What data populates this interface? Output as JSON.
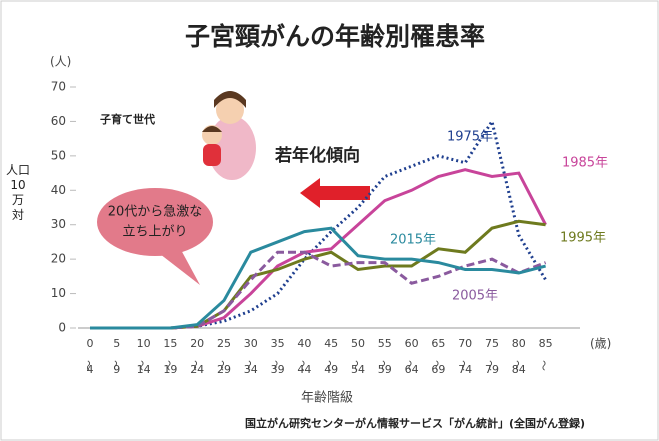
{
  "chart_data": {
    "type": "line",
    "title": "子宮頸がんの年齢別罹患率",
    "y_unit": "(人)",
    "y_label": "人口10万対",
    "x_label": "年齢階級",
    "x_unit": "(歳)",
    "source": "国立がん研究センターがん情報サービス「がん統計」(全国がん登録)",
    "annotations": {
      "generation": "子育て世代",
      "trend": "若年化傾向",
      "bubble": [
        "20代から急激な",
        "立ち上がり"
      ]
    },
    "categories": [
      "0〜4",
      "5〜9",
      "10〜14",
      "15〜19",
      "20〜24",
      "25〜29",
      "30〜34",
      "35〜39",
      "40〜44",
      "45〜49",
      "50〜54",
      "55〜59",
      "60〜64",
      "65〜69",
      "70〜74",
      "75〜79",
      "80〜84",
      "85〜"
    ],
    "ylim": [
      0,
      70
    ],
    "yticks": [
      0,
      10,
      20,
      30,
      40,
      50,
      60,
      70
    ],
    "grid": false,
    "series": [
      {
        "name": "1975年",
        "color": "#1f3f8f",
        "style": "dotted",
        "values": [
          0,
          0,
          0,
          0,
          0.5,
          2,
          5,
          10,
          20,
          28,
          35,
          44,
          47,
          50,
          48,
          60,
          27,
          14
        ]
      },
      {
        "name": "1985年",
        "color": "#c8449a",
        "style": "solid",
        "values": [
          0,
          0,
          0,
          0,
          0.5,
          3,
          10,
          18,
          22,
          23,
          30,
          37,
          40,
          44,
          46,
          44,
          45,
          30
        ]
      },
      {
        "name": "1995年",
        "color": "#6e7a1e",
        "style": "solid",
        "values": [
          0,
          0,
          0,
          0,
          0.5,
          5,
          15,
          17,
          20,
          22,
          17,
          18,
          18,
          23,
          22,
          29,
          31,
          30
        ]
      },
      {
        "name": "2005年",
        "color": "#8a5a9e",
        "style": "dashed",
        "values": [
          0,
          0,
          0,
          0,
          0.5,
          5,
          14,
          22,
          22,
          18,
          19,
          19,
          13,
          15,
          18,
          20,
          16,
          19
        ]
      },
      {
        "name": "2015年",
        "color": "#2a8a9e",
        "style": "solid",
        "values": [
          0,
          0,
          0,
          0,
          1,
          8,
          22,
          25,
          28,
          29,
          21,
          20,
          20,
          19,
          17,
          17,
          16,
          18
        ]
      }
    ]
  }
}
